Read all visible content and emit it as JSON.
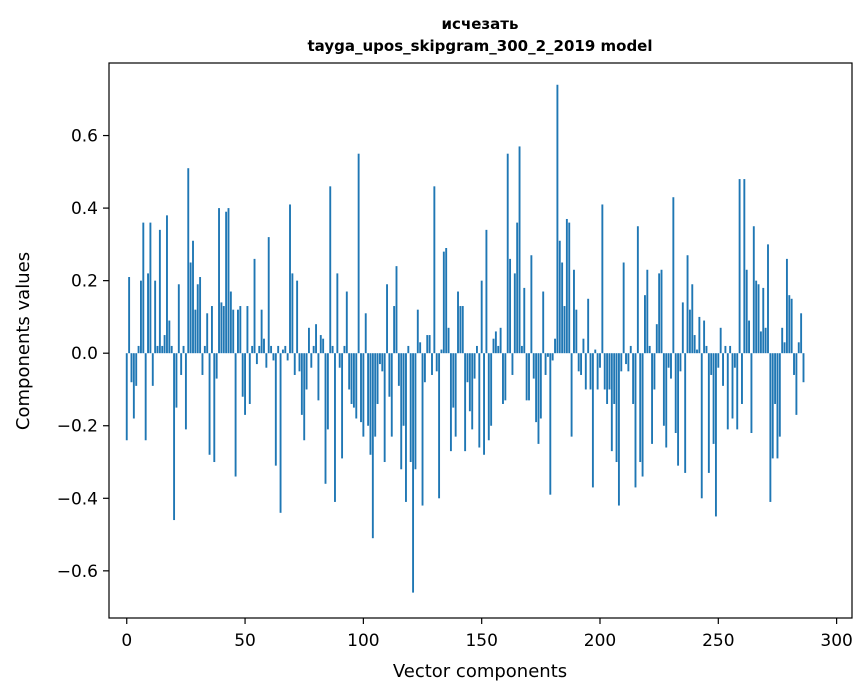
{
  "chart_data": {
    "type": "bar",
    "title": "исчезать",
    "subtitle": "tayga_upos_skipgram_300_2_2019 model",
    "xlabel": "Vector components",
    "ylabel": "Components values",
    "xlim": [
      -7.5,
      306.5
    ],
    "ylim": [
      -0.73,
      0.8
    ],
    "xticks": [
      0,
      50,
      100,
      150,
      200,
      250,
      300
    ],
    "xtick_labels": [
      "0",
      "50",
      "100",
      "150",
      "200",
      "250",
      "300"
    ],
    "yticks": [
      -0.6,
      -0.4,
      -0.2,
      0.0,
      0.2,
      0.4,
      0.6
    ],
    "ytick_labels": [
      "−0.6",
      "−0.4",
      "−0.2",
      "0.0",
      "0.2",
      "0.4",
      "0.6"
    ],
    "series_color": "#1f77b4",
    "values": [
      -0.24,
      0.21,
      -0.08,
      -0.18,
      -0.09,
      0.02,
      0.2,
      0.36,
      -0.24,
      0.22,
      0.36,
      -0.09,
      0.2,
      0.02,
      0.34,
      0.02,
      0.05,
      0.38,
      0.09,
      0.02,
      -0.46,
      -0.15,
      0.19,
      -0.06,
      0.02,
      -0.21,
      0.51,
      0.25,
      0.31,
      0.12,
      0.19,
      0.21,
      -0.06,
      0.02,
      0.11,
      -0.28,
      0.13,
      -0.3,
      -0.07,
      0.4,
      0.14,
      0.13,
      0.39,
      0.4,
      0.17,
      0.12,
      -0.34,
      0.12,
      0.13,
      -0.12,
      -0.17,
      0.13,
      -0.14,
      0.02,
      0.26,
      -0.03,
      0.02,
      0.12,
      0.04,
      -0.04,
      0.32,
      0.02,
      -0.02,
      -0.31,
      0.02,
      -0.44,
      0.01,
      0.02,
      -0.02,
      0.41,
      0.22,
      -0.06,
      0.2,
      -0.05,
      -0.17,
      -0.24,
      -0.1,
      0.07,
      -0.04,
      0.02,
      0.08,
      -0.13,
      0.05,
      0.04,
      -0.36,
      -0.21,
      0.46,
      0.02,
      -0.41,
      0.22,
      -0.04,
      -0.29,
      0.02,
      0.17,
      -0.1,
      -0.14,
      -0.15,
      -0.18,
      0.55,
      -0.19,
      -0.23,
      0.11,
      -0.2,
      -0.28,
      -0.51,
      -0.23,
      -0.14,
      -0.03,
      -0.05,
      -0.3,
      0.19,
      -0.12,
      -0.23,
      0.13,
      0.24,
      -0.09,
      -0.32,
      -0.2,
      -0.41,
      0.02,
      -0.3,
      -0.66,
      -0.32,
      0.12,
      0.03,
      -0.42,
      -0.08,
      0.05,
      0.05,
      -0.06,
      0.46,
      -0.05,
      -0.4,
      0.01,
      0.28,
      0.29,
      0.07,
      -0.27,
      -0.15,
      -0.23,
      0.17,
      0.13,
      0.13,
      -0.27,
      -0.08,
      -0.16,
      -0.21,
      -0.07,
      0.02,
      -0.26,
      0.2,
      -0.28,
      0.34,
      -0.24,
      -0.2,
      0.04,
      0.06,
      0.02,
      0.07,
      -0.14,
      -0.13,
      0.55,
      0.26,
      -0.06,
      0.22,
      0.36,
      0.57,
      0.02,
      0.18,
      -0.13,
      -0.13,
      0.27,
      -0.07,
      -0.19,
      -0.25,
      -0.18,
      0.17,
      -0.06,
      -0.01,
      -0.39,
      -0.02,
      0.04,
      0.74,
      0.31,
      0.25,
      0.13,
      0.37,
      0.36,
      -0.23,
      0.23,
      0.12,
      -0.05,
      -0.06,
      0.04,
      -0.1,
      0.15,
      -0.1,
      -0.37,
      0.01,
      -0.1,
      -0.04,
      0.41,
      -0.1,
      -0.14,
      -0.1,
      -0.27,
      -0.14,
      -0.3,
      -0.42,
      -0.05,
      0.25,
      -0.03,
      -0.05,
      0.02,
      -0.14,
      -0.37,
      0.35,
      -0.3,
      -0.34,
      0.16,
      0.23,
      0.02,
      -0.25,
      -0.1,
      0.08,
      0.22,
      0.23,
      -0.2,
      -0.26,
      -0.04,
      -0.07,
      0.43,
      -0.22,
      -0.31,
      -0.05,
      0.14,
      -0.33,
      0.27,
      0.12,
      0.19,
      0.05,
      0.01,
      0.1,
      -0.4,
      0.09,
      0.02,
      -0.33,
      -0.06,
      -0.25,
      -0.45,
      -0.04,
      0.07,
      -0.09,
      0.02,
      -0.21,
      0.02,
      -0.18,
      -0.04,
      -0.21,
      0.48,
      -0.14,
      0.48,
      0.23,
      0.09,
      -0.22,
      0.35,
      0.2,
      0.19,
      0.06,
      0.18,
      0.07,
      0.3,
      -0.41,
      -0.29,
      -0.14,
      -0.29,
      -0.23,
      0.07,
      0.03,
      0.26,
      0.16,
      0.15,
      -0.06,
      -0.17,
      0.03,
      0.11,
      -0.08
    ]
  }
}
